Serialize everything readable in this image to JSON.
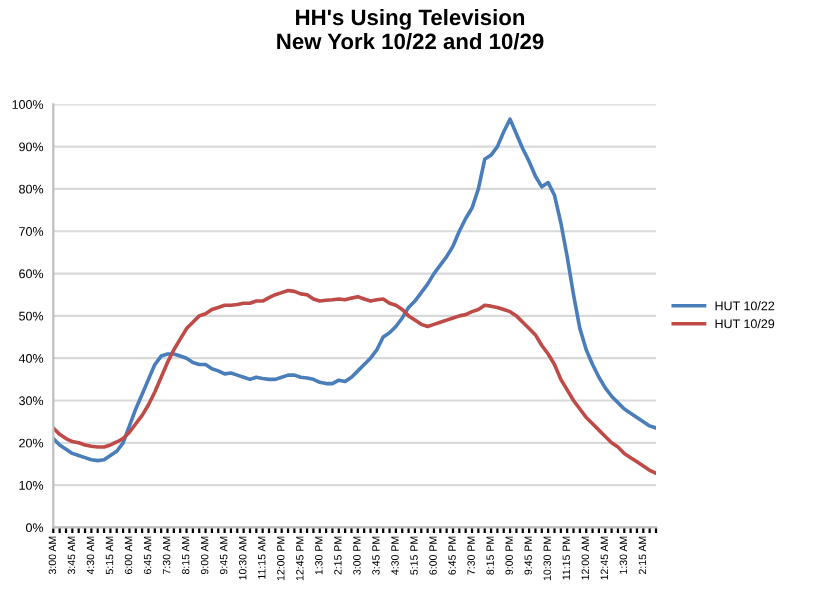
{
  "chart_data": {
    "type": "line",
    "title": "HH's Using Television\nNew York 10/22 and 10/29",
    "categories": [
      "3:00 AM",
      null,
      null,
      "3:45 AM",
      null,
      null,
      "4:30 AM",
      null,
      null,
      "5:15 AM",
      null,
      null,
      "6:00 AM",
      null,
      null,
      "6:45 AM",
      null,
      null,
      "7:30 AM",
      null,
      null,
      "8:15 AM",
      null,
      null,
      "9:00 AM",
      null,
      null,
      "9:45 AM",
      null,
      null,
      "10:30 AM",
      null,
      null,
      "11:15 AM",
      null,
      null,
      "12:00 PM",
      null,
      null,
      "12:45 PM",
      null,
      null,
      "1:30 PM",
      null,
      null,
      "2:15 PM",
      null,
      null,
      "3:00 PM",
      null,
      null,
      "3:45 PM",
      null,
      null,
      "4:30 PM",
      null,
      null,
      "5:15 PM",
      null,
      null,
      "6:00 PM",
      null,
      null,
      "6:45 PM",
      null,
      null,
      "7:30 PM",
      null,
      null,
      "8:15 PM",
      null,
      null,
      "9:00 PM",
      null,
      null,
      "9:45 PM",
      null,
      null,
      "10:30 PM",
      null,
      null,
      "11:15 PM",
      null,
      null,
      "12:00 AM",
      null,
      null,
      "12:45 AM",
      null,
      null,
      "1:30 AM",
      null,
      null,
      "2:15 AM",
      null,
      null
    ],
    "series": [
      {
        "name": "HUT 10/22",
        "color": "#4a7ebb",
        "values": [
          21,
          19.5,
          18.5,
          17.5,
          17,
          16.5,
          16,
          15.8,
          16,
          17,
          18,
          20,
          24,
          28,
          31.5,
          35,
          38.5,
          40.5,
          41,
          41,
          40.5,
          40,
          39,
          38.5,
          38.5,
          37.5,
          37,
          36.3,
          36.5,
          36,
          35.5,
          35,
          35.5,
          35.2,
          35,
          35,
          35.5,
          36,
          36,
          35.5,
          35.3,
          35,
          34.3,
          34,
          34,
          34.8,
          34.5,
          35.5,
          37,
          38.5,
          40,
          42,
          45,
          46,
          47.5,
          49.5,
          52,
          53.5,
          55.5,
          57.5,
          60,
          62,
          64,
          66.5,
          70,
          73,
          75.5,
          80,
          87,
          88,
          90,
          93.5,
          96.5,
          93,
          89.5,
          86.5,
          83,
          80.5,
          81.5,
          78.5,
          72,
          64,
          55,
          47,
          42,
          38.5,
          35.5,
          33,
          31,
          29.5,
          28,
          27,
          26,
          25,
          24,
          23.5
        ]
      },
      {
        "name": "HUT 10/29",
        "color": "#be4b48",
        "values": [
          23.5,
          22,
          21,
          20.3,
          20,
          19.5,
          19.2,
          19,
          19,
          19.5,
          20.2,
          21,
          22.5,
          24.5,
          26.5,
          29,
          32,
          35.5,
          39,
          42,
          44.5,
          47,
          48.5,
          50,
          50.5,
          51.5,
          52,
          52.5,
          52.5,
          52.7,
          53,
          53,
          53.5,
          53.5,
          54.3,
          55,
          55.5,
          56,
          55.8,
          55.2,
          55,
          54,
          53.5,
          53.7,
          53.8,
          54,
          53.8,
          54.2,
          54.5,
          54,
          53.5,
          53.8,
          54,
          53,
          52.5,
          51.5,
          50,
          49,
          48,
          47.5,
          48,
          48.5,
          49,
          49.5,
          50,
          50.3,
          51,
          51.5,
          52.5,
          52.3,
          52,
          51.5,
          51,
          50,
          48.5,
          47,
          45.5,
          43,
          41,
          38.5,
          35,
          32.5,
          30,
          28,
          26,
          24.5,
          23,
          21.5,
          20,
          19,
          17.5,
          16.5,
          15.5,
          14.5,
          13.5,
          12.8
        ]
      }
    ],
    "ylim": [
      0,
      100
    ],
    "yticks": [
      {
        "value": 0,
        "label": "0%"
      },
      {
        "value": 10,
        "label": "10%"
      },
      {
        "value": 20,
        "label": "20%"
      },
      {
        "value": 30,
        "label": "30%"
      },
      {
        "value": 40,
        "label": "40%"
      },
      {
        "value": 50,
        "label": "50%"
      },
      {
        "value": 60,
        "label": "60%"
      },
      {
        "value": 70,
        "label": "70%"
      },
      {
        "value": 80,
        "label": "80%"
      },
      {
        "value": 90,
        "label": "90%"
      },
      {
        "value": 100,
        "label": "100%"
      }
    ],
    "grid": "y",
    "legend": "right",
    "marker": "none",
    "line_style": "solid"
  }
}
